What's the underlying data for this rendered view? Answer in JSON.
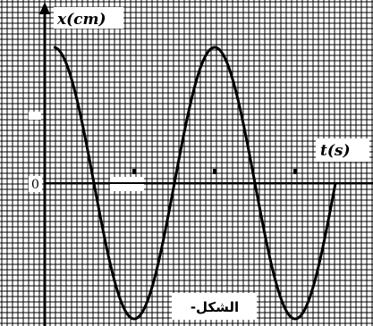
{
  "chart_data": {
    "type": "line",
    "function": "cosine",
    "xlabel": "t(s)",
    "ylabel": "x(cm)",
    "origin_label": "0",
    "caption": "الشكل-",
    "grid": true,
    "line_color": "#000000",
    "grid_color": "#000000",
    "x_range_periods": [
      0,
      1.75
    ],
    "y_range_amplitude": [
      -1.15,
      1.2
    ],
    "amplitude": 1,
    "phase_at_t0": "maximum",
    "periods_shown": 1.75,
    "x_tick_marks_periods": [
      0.5,
      1.0,
      1.5
    ],
    "y_tick_marks_amplitude": [
      0.5
    ]
  }
}
